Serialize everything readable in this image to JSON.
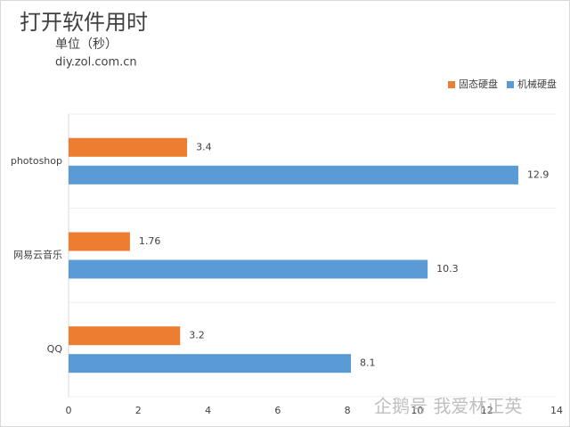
{
  "chart_data": {
    "type": "bar",
    "orientation": "horizontal",
    "title": "打开软件用时",
    "subtitle": "单位（秒）",
    "source": "diy.zol.com.cn",
    "categories": [
      "photoshop",
      "网易云音乐",
      "QQ"
    ],
    "series": [
      {
        "name": "固态硬盘",
        "color": "#ed7d31",
        "values": [
          3.4,
          1.76,
          3.2
        ]
      },
      {
        "name": "机械硬盘",
        "color": "#5b9bd5",
        "values": [
          12.9,
          10.3,
          8.1
        ]
      }
    ],
    "xlim": [
      0,
      14
    ],
    "xticks": [
      0,
      2,
      4,
      6,
      8,
      10,
      12,
      14
    ],
    "legend": "top-right",
    "watermark": "企鹅号 我爱林正英"
  }
}
